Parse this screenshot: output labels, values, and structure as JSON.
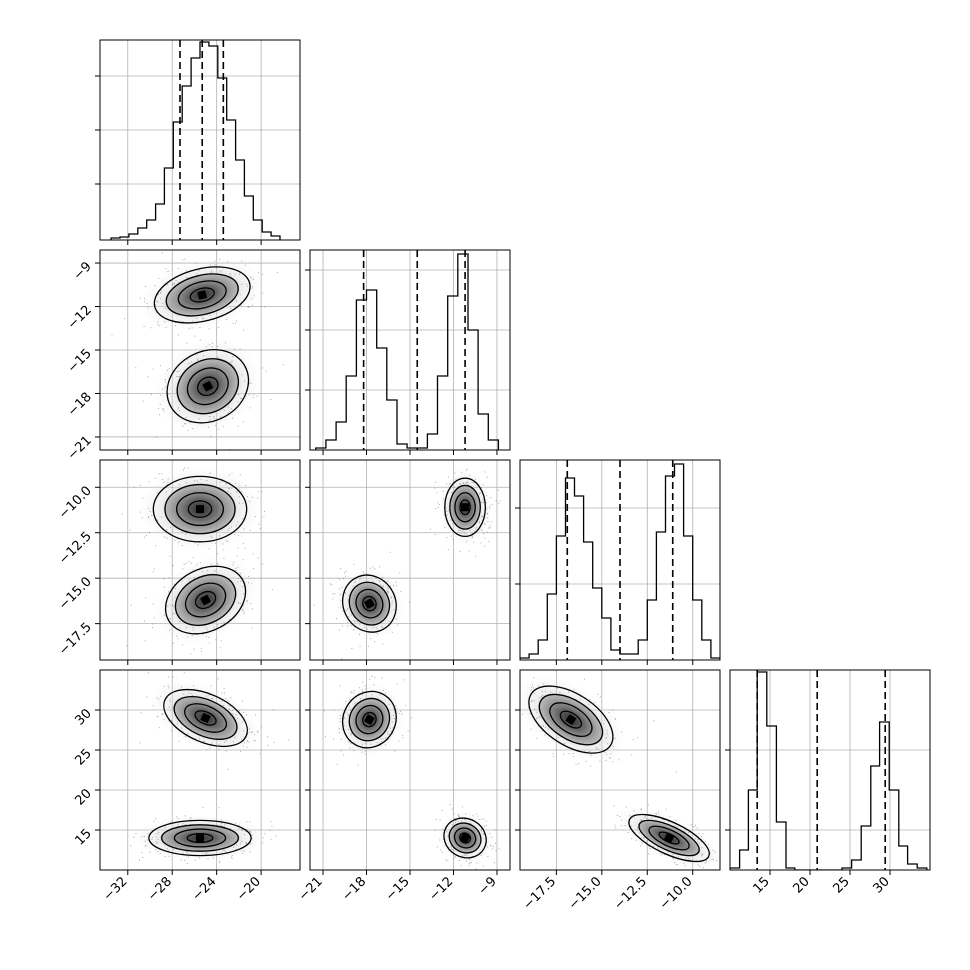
{
  "chart_data": {
    "type": "corner",
    "grid": true,
    "dimensions": [
      {
        "range": [
          -34.5,
          -16.5
        ],
        "ticks": [
          -32,
          -28,
          -24,
          -20
        ],
        "tick_labels": [
          "−32",
          "−28",
          "−24",
          "−20"
        ],
        "quantiles": [
          -27.3,
          -25.3,
          -23.4
        ],
        "hist_max": 1.0,
        "hist_ticks": [
          0.28,
          0.55,
          0.82
        ],
        "histogram": {
          "edges": [
            -33.5,
            -32.7,
            -31.9,
            -31.1,
            -30.3,
            -29.5,
            -28.7,
            -27.9,
            -27.1,
            -26.3,
            -25.5,
            -24.7,
            -23.9,
            -23.1,
            -22.3,
            -21.5,
            -20.7,
            -19.9,
            -19.1,
            -18.3
          ],
          "counts": [
            0.01,
            0.015,
            0.03,
            0.06,
            0.1,
            0.18,
            0.36,
            0.59,
            0.77,
            0.91,
            0.99,
            0.97,
            0.81,
            0.6,
            0.4,
            0.22,
            0.1,
            0.04,
            0.02
          ]
        }
      },
      {
        "range": [
          -21.9,
          -8.1
        ],
        "ticks": [
          -21,
          -18,
          -15,
          -12,
          -9
        ],
        "tick_labels": [
          "−21",
          "−18",
          "−15",
          "−12",
          "−9"
        ],
        "quantiles": [
          -18.2,
          -14.5,
          -11.2
        ],
        "hist_max": 1.0,
        "hist_ticks": [
          0.3,
          0.6,
          0.9
        ],
        "histogram": {
          "edges": [
            -21.5,
            -20.8,
            -20.1,
            -19.4,
            -18.7,
            -18.0,
            -17.3,
            -16.6,
            -15.9,
            -15.2,
            -14.5,
            -13.8,
            -13.1,
            -12.4,
            -11.7,
            -11.0,
            -10.3,
            -9.6,
            -8.9
          ],
          "counts": [
            0.01,
            0.05,
            0.14,
            0.37,
            0.75,
            0.8,
            0.51,
            0.25,
            0.03,
            0.01,
            0.01,
            0.08,
            0.37,
            0.77,
            0.98,
            0.6,
            0.18,
            0.05
          ]
        }
      },
      {
        "range": [
          -19.5,
          -8.5
        ],
        "ticks": [
          -17.5,
          -15.0,
          -12.5,
          -10.0
        ],
        "tick_labels": [
          "−17.5",
          "−15.0",
          "−12.5",
          "−10.0"
        ],
        "quantiles": [
          -16.9,
          -14.0,
          -11.1
        ],
        "hist_max": 1.0,
        "hist_ticks": [
          0.38,
          0.76
        ],
        "histogram": {
          "edges": [
            -19.5,
            -19.0,
            -18.5,
            -18.0,
            -17.5,
            -17.0,
            -16.5,
            -16.0,
            -15.5,
            -15.0,
            -14.5,
            -14.0,
            -13.5,
            -13.0,
            -12.5,
            -12.0,
            -11.5,
            -11.0,
            -10.5,
            -10.0,
            -9.5,
            -9.0,
            -8.5
          ],
          "counts": [
            0.01,
            0.03,
            0.1,
            0.33,
            0.62,
            0.91,
            0.82,
            0.59,
            0.36,
            0.21,
            0.05,
            0.03,
            0.03,
            0.1,
            0.3,
            0.64,
            0.92,
            0.98,
            0.62,
            0.3,
            0.1,
            0.01
          ]
        }
      },
      {
        "range": [
          10.0,
          35.0
        ],
        "ticks": [
          15,
          20,
          25,
          30
        ],
        "tick_labels": [
          "15",
          "20",
          "25",
          "30"
        ],
        "quantiles": [
          13.4,
          20.9,
          29.4
        ],
        "hist_max": 1.0,
        "hist_ticks": [
          0.6,
          0.2
        ],
        "histogram": {
          "edges": [
            10.0,
            11.2,
            12.3,
            13.4,
            14.6,
            15.8,
            17.0,
            18.1,
            19.3,
            20.5,
            21.7,
            22.9,
            24.0,
            25.2,
            26.4,
            27.6,
            28.7,
            29.9,
            31.1,
            32.2,
            33.4,
            34.6
          ],
          "counts": [
            0.01,
            0.1,
            0.4,
            0.99,
            0.72,
            0.24,
            0.01,
            0.0,
            0.0,
            0.0,
            0.0,
            0.0,
            0.01,
            0.05,
            0.22,
            0.52,
            0.74,
            0.4,
            0.12,
            0.03,
            0.01
          ]
        }
      }
    ],
    "pairs": [
      {
        "row": 1,
        "col": 0,
        "clusters": [
          {
            "cx": -25.3,
            "cy": -11.2,
            "sx": 2.2,
            "sy": 0.9,
            "angle_deg": 14
          },
          {
            "cx": -24.8,
            "cy": -17.5,
            "sx": 1.9,
            "sy": 1.2,
            "angle_deg": 28
          }
        ]
      },
      {
        "row": 2,
        "col": 0,
        "clusters": [
          {
            "cx": -25.5,
            "cy": -11.2,
            "sx": 2.1,
            "sy": 0.9,
            "angle_deg": 0
          },
          {
            "cx": -25.0,
            "cy": -16.2,
            "sx": 1.9,
            "sy": 0.85,
            "angle_deg": 28
          }
        ]
      },
      {
        "row": 2,
        "col": 1,
        "clusters": [
          {
            "cx": -11.2,
            "cy": -11.1,
            "sx": 0.7,
            "sy": 0.8,
            "angle_deg": 0
          },
          {
            "cx": -17.8,
            "cy": -16.4,
            "sx": 0.9,
            "sy": 0.8,
            "angle_deg": 28
          }
        ]
      },
      {
        "row": 3,
        "col": 0,
        "clusters": [
          {
            "cx": -25.0,
            "cy": 29.0,
            "sx": 2.0,
            "sy": 1.5,
            "angle_deg": -24
          },
          {
            "cx": -25.5,
            "cy": 14.0,
            "sx": 2.3,
            "sy": 1.1,
            "angle_deg": 0
          }
        ]
      },
      {
        "row": 3,
        "col": 1,
        "clusters": [
          {
            "cx": -17.8,
            "cy": 28.8,
            "sx": 0.9,
            "sy": 1.8,
            "angle_deg": -30
          },
          {
            "cx": -11.2,
            "cy": 14.0,
            "sx": 0.75,
            "sy": 1.2,
            "angle_deg": -30
          }
        ]
      },
      {
        "row": 3,
        "col": 2,
        "clusters": [
          {
            "cx": -16.7,
            "cy": 28.8,
            "sx": 1.3,
            "sy": 1.6,
            "angle_deg": -33
          },
          {
            "cx": -11.3,
            "cy": 14.0,
            "sx": 1.2,
            "sy": 1.0,
            "angle_deg": -25
          }
        ]
      }
    ]
  }
}
